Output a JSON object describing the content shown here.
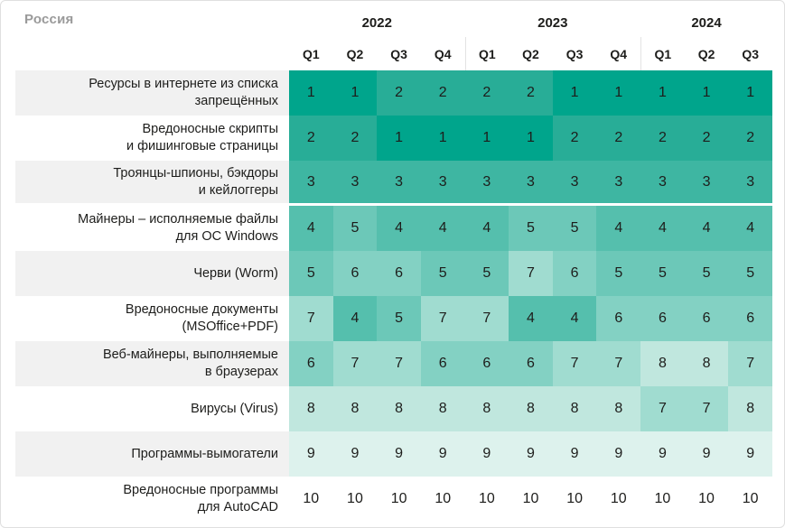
{
  "title": "Россия",
  "header": {
    "year_groups": [
      {
        "year": "2022",
        "quarters": [
          "Q1",
          "Q2",
          "Q3",
          "Q4"
        ]
      },
      {
        "year": "2023",
        "quarters": [
          "Q1",
          "Q2",
          "Q3",
          "Q4"
        ]
      },
      {
        "year": "2024",
        "quarters": [
          "Q1",
          "Q2",
          "Q3"
        ]
      }
    ]
  },
  "rows": [
    {
      "label_lines": [
        "Ресурсы в интернете из списка",
        "запрещённых"
      ],
      "values": [
        1,
        1,
        2,
        2,
        2,
        2,
        1,
        1,
        1,
        1,
        1
      ]
    },
    {
      "label_lines": [
        "Вредоносные скрипты",
        "и фишинговые страницы"
      ],
      "values": [
        2,
        2,
        1,
        1,
        1,
        1,
        2,
        2,
        2,
        2,
        2
      ]
    },
    {
      "label_lines": [
        "Троянцы-шпионы, бэкдоры",
        "и кейлоггеры"
      ],
      "values": [
        3,
        3,
        3,
        3,
        3,
        3,
        3,
        3,
        3,
        3,
        3
      ]
    },
    {
      "label_lines": [
        "Майнеры – исполняемые файлы",
        "для ОС Windows"
      ],
      "values": [
        4,
        5,
        4,
        4,
        4,
        5,
        5,
        4,
        4,
        4,
        4
      ]
    },
    {
      "label_lines": [
        "Черви (Worm)"
      ],
      "values": [
        5,
        6,
        6,
        5,
        5,
        7,
        6,
        5,
        5,
        5,
        5
      ]
    },
    {
      "label_lines": [
        "Вредоносные документы",
        "(MSOffice+PDF)"
      ],
      "values": [
        7,
        4,
        5,
        7,
        7,
        4,
        4,
        6,
        6,
        6,
        6
      ]
    },
    {
      "label_lines": [
        "Веб-майнеры, выполняемые",
        "в браузерах"
      ],
      "values": [
        6,
        7,
        7,
        6,
        6,
        6,
        7,
        7,
        8,
        8,
        7
      ]
    },
    {
      "label_lines": [
        "Вирусы (Virus)"
      ],
      "values": [
        8,
        8,
        8,
        8,
        8,
        8,
        8,
        8,
        7,
        7,
        8
      ]
    },
    {
      "label_lines": [
        "Программы-вымогатели"
      ],
      "values": [
        9,
        9,
        9,
        9,
        9,
        9,
        9,
        9,
        9,
        9,
        9
      ]
    },
    {
      "label_lines": [
        "Вредоносные программы",
        "для AutoCAD"
      ],
      "values": [
        10,
        10,
        10,
        10,
        10,
        10,
        10,
        10,
        10,
        10,
        10
      ]
    }
  ],
  "divider_after_row": 3,
  "colors": {
    "rank_scale": {
      "1": "#00a58c",
      "2": "#28ad97",
      "3": "#3eb6a2",
      "4": "#55bfad",
      "5": "#6cc8b8",
      "6": "#83d1c3",
      "7": "#a0dcd0",
      "8": "#c0e7de",
      "9": "#ddf2ed",
      "10": "#ffffff"
    },
    "row_label_bg_odd": "#f1f1f1",
    "row_label_bg_even": "#ffffff",
    "title_color": "#9a9a9a",
    "text_color": "#1d1d1b",
    "card_border": "#dfdfdf",
    "header_divider": "#e3e3e3"
  },
  "chart_data": {
    "type": "heatmap",
    "title": "Россия",
    "x": [
      "2022 Q1",
      "2022 Q2",
      "2022 Q3",
      "2022 Q4",
      "2023 Q1",
      "2023 Q2",
      "2023 Q3",
      "2023 Q4",
      "2024 Q1",
      "2024 Q2",
      "2024 Q3"
    ],
    "categories": [
      "Ресурсы в интернете из списка запрещённых",
      "Вредоносные скрипты и фишинговые страницы",
      "Троянцы-шпионы, бэкдоры и кейлоггеры",
      "Майнеры – исполняемые файлы для ОС Windows",
      "Черви (Worm)",
      "Вредоносные документы (MSOffice+PDF)",
      "Веб-майнеры, выполняемые в браузерах",
      "Вирусы (Virus)",
      "Программы-вымогатели",
      "Вредоносные программы для AutoCAD"
    ],
    "values": [
      [
        1,
        1,
        2,
        2,
        2,
        2,
        1,
        1,
        1,
        1,
        1
      ],
      [
        2,
        2,
        1,
        1,
        1,
        1,
        2,
        2,
        2,
        2,
        2
      ],
      [
        3,
        3,
        3,
        3,
        3,
        3,
        3,
        3,
        3,
        3,
        3
      ],
      [
        4,
        5,
        4,
        4,
        4,
        5,
        5,
        4,
        4,
        4,
        4
      ],
      [
        5,
        6,
        6,
        5,
        5,
        7,
        6,
        5,
        5,
        5,
        5
      ],
      [
        7,
        4,
        5,
        7,
        7,
        4,
        4,
        6,
        6,
        6,
        6
      ],
      [
        6,
        7,
        7,
        6,
        6,
        6,
        7,
        7,
        8,
        8,
        7
      ],
      [
        8,
        8,
        8,
        8,
        8,
        8,
        8,
        8,
        7,
        7,
        8
      ],
      [
        9,
        9,
        9,
        9,
        9,
        9,
        9,
        9,
        9,
        9,
        9
      ],
      [
        10,
        10,
        10,
        10,
        10,
        10,
        10,
        10,
        10,
        10,
        10
      ]
    ],
    "value_meaning": "rank of threat category per quarter (1 = highest)",
    "value_range": [
      1,
      10
    ],
    "color_scale": [
      "#00a58c",
      "#ffffff"
    ],
    "legend": "none",
    "grid": false
  }
}
